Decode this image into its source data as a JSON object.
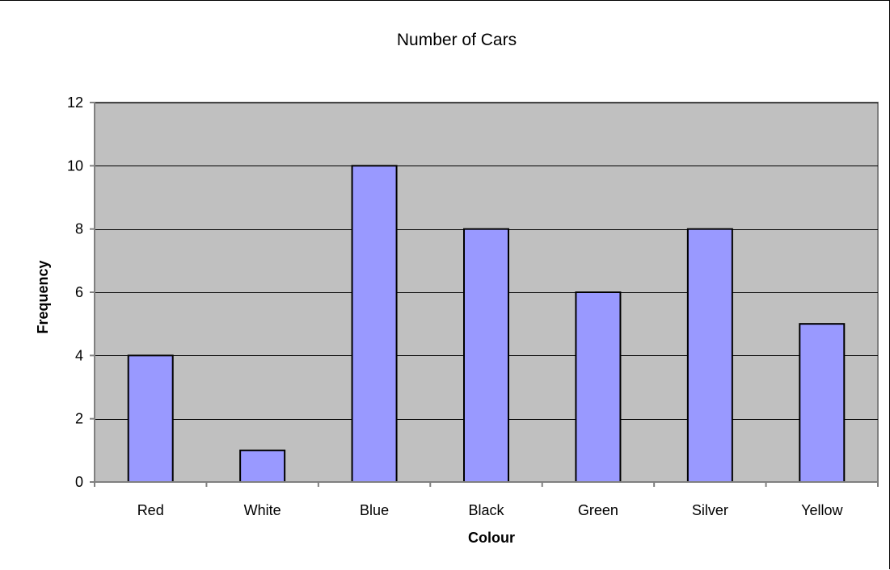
{
  "chart_data": {
    "type": "bar",
    "title": "Number of Cars",
    "xlabel": "Colour",
    "ylabel": "Frequency",
    "categories": [
      "Red",
      "White",
      "Blue",
      "Black",
      "Green",
      "Silver",
      "Yellow"
    ],
    "values": [
      4,
      1,
      10,
      8,
      6,
      8,
      5
    ],
    "ylim": [
      0,
      12
    ],
    "yticks": [
      "0",
      "2",
      "4",
      "6",
      "8",
      "10",
      "12"
    ],
    "grid": true,
    "legend": "none",
    "colors": {
      "bar_fill": "#9999ff",
      "bar_stroke": "#000000",
      "plot_background": "#c0c0c0",
      "gridline": "#000000",
      "axis": "#808080"
    }
  }
}
